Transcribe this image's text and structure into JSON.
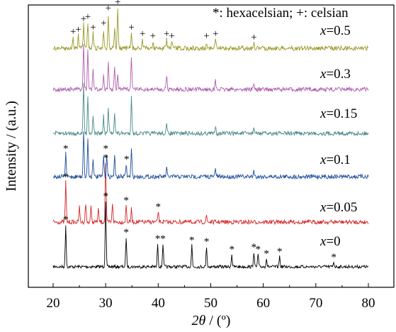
{
  "chart_data": {
    "type": "line",
    "xlabel_symbol": "2θ",
    "xlabel_unit": " / (º)",
    "ylabel": "Intensity / (a.u.)",
    "xlim": [
      20,
      80
    ],
    "xticks": [
      20,
      30,
      40,
      50,
      60,
      70,
      80
    ],
    "yticks_labeled": false,
    "grid": false,
    "legend": {
      "star_symbol": "*",
      "star_text": ": hexacelsian; ",
      "plus_symbol": "+",
      "plus_text": ": celsian",
      "placement": "top-right"
    },
    "series": [
      {
        "name": "x=0",
        "label_prefix": "x",
        "label_value": "=0",
        "color": "#000000",
        "peaks": [
          {
            "x": 22.4,
            "h": 1.0
          },
          {
            "x": 30.0,
            "h": 1.55
          },
          {
            "x": 33.9,
            "h": 0.7
          },
          {
            "x": 39.9,
            "h": 0.55
          },
          {
            "x": 40.9,
            "h": 0.55
          },
          {
            "x": 46.4,
            "h": 0.52
          },
          {
            "x": 49.2,
            "h": 0.48
          },
          {
            "x": 54.0,
            "h": 0.3
          },
          {
            "x": 58.2,
            "h": 0.35
          },
          {
            "x": 59.0,
            "h": 0.3
          },
          {
            "x": 60.6,
            "h": 0.2
          },
          {
            "x": 63.1,
            "h": 0.25
          },
          {
            "x": 73.4,
            "h": 0.12
          }
        ]
      },
      {
        "name": "x=0.05",
        "label_prefix": "x",
        "label_value": "=0.05",
        "color": "#d62728",
        "peaks": [
          {
            "x": 22.4,
            "h": 0.95
          },
          {
            "x": 25.0,
            "h": 0.35
          },
          {
            "x": 26.2,
            "h": 0.45
          },
          {
            "x": 27.2,
            "h": 0.35
          },
          {
            "x": 28.6,
            "h": 0.3
          },
          {
            "x": 30.0,
            "h": 1.4
          },
          {
            "x": 31.3,
            "h": 0.45
          },
          {
            "x": 33.9,
            "h": 0.4
          },
          {
            "x": 34.9,
            "h": 0.3
          },
          {
            "x": 40.0,
            "h": 0.25
          },
          {
            "x": 49.2,
            "h": 0.15
          }
        ]
      },
      {
        "name": "x=0.1",
        "label_prefix": "x",
        "label_value": "=0.1",
        "color": "#1f4e9c",
        "peaks": [
          {
            "x": 22.4,
            "h": 0.55
          },
          {
            "x": 25.8,
            "h": 1.1
          },
          {
            "x": 26.6,
            "h": 0.9
          },
          {
            "x": 27.6,
            "h": 0.45
          },
          {
            "x": 29.6,
            "h": 0.5
          },
          {
            "x": 30.2,
            "h": 0.55
          },
          {
            "x": 31.7,
            "h": 0.5
          },
          {
            "x": 33.9,
            "h": 0.3
          },
          {
            "x": 34.9,
            "h": 0.65
          },
          {
            "x": 41.6,
            "h": 0.2
          },
          {
            "x": 50.9,
            "h": 0.2
          },
          {
            "x": 58.2,
            "h": 0.15
          }
        ]
      },
      {
        "name": "x=0.15",
        "label_prefix": "x",
        "label_value": "=0.15",
        "color": "#4a8a8a",
        "peaks": [
          {
            "x": 25.8,
            "h": 1.2
          },
          {
            "x": 26.6,
            "h": 0.9
          },
          {
            "x": 27.6,
            "h": 0.45
          },
          {
            "x": 29.6,
            "h": 0.4
          },
          {
            "x": 30.5,
            "h": 0.6
          },
          {
            "x": 31.7,
            "h": 0.5
          },
          {
            "x": 34.9,
            "h": 0.9
          },
          {
            "x": 41.6,
            "h": 0.2
          },
          {
            "x": 50.9,
            "h": 0.2
          },
          {
            "x": 58.2,
            "h": 0.15
          }
        ]
      },
      {
        "name": "x=0.3",
        "label_prefix": "x",
        "label_value": "=0.3",
        "color": "#b05fb0",
        "peaks": [
          {
            "x": 25.8,
            "h": 1.1
          },
          {
            "x": 26.6,
            "h": 0.95
          },
          {
            "x": 27.6,
            "h": 0.5
          },
          {
            "x": 29.6,
            "h": 0.35
          },
          {
            "x": 30.5,
            "h": 0.6
          },
          {
            "x": 31.7,
            "h": 0.5
          },
          {
            "x": 32.3,
            "h": 0.35
          },
          {
            "x": 34.9,
            "h": 0.8
          },
          {
            "x": 41.6,
            "h": 0.35
          },
          {
            "x": 50.9,
            "h": 0.2
          },
          {
            "x": 58.2,
            "h": 0.15
          }
        ]
      },
      {
        "name": "x=0.5",
        "label_prefix": "x",
        "label_value": "=0.5",
        "color": "#9a9a2a",
        "peaks": [
          {
            "x": 23.8,
            "h": 0.25
          },
          {
            "x": 24.8,
            "h": 0.3
          },
          {
            "x": 25.8,
            "h": 0.55
          },
          {
            "x": 26.6,
            "h": 0.6
          },
          {
            "x": 27.6,
            "h": 0.35
          },
          {
            "x": 29.6,
            "h": 0.45
          },
          {
            "x": 30.5,
            "h": 0.8
          },
          {
            "x": 31.7,
            "h": 0.5
          },
          {
            "x": 32.3,
            "h": 0.95
          },
          {
            "x": 34.9,
            "h": 0.35
          },
          {
            "x": 37.0,
            "h": 0.2
          },
          {
            "x": 39.0,
            "h": 0.15
          },
          {
            "x": 41.6,
            "h": 0.2
          },
          {
            "x": 42.6,
            "h": 0.15
          },
          {
            "x": 49.2,
            "h": 0.15
          },
          {
            "x": 50.9,
            "h": 0.2
          },
          {
            "x": 58.2,
            "h": 0.12
          }
        ]
      }
    ],
    "annotations": [
      {
        "series": "x=0",
        "symbol": "*",
        "positions": [
          22.4,
          30.0,
          33.9,
          39.9,
          40.9,
          46.4,
          49.2,
          54.0,
          58.2,
          59.0,
          60.6,
          63.1,
          73.4
        ]
      },
      {
        "series": "x=0.05",
        "symbol": "*",
        "positions": [
          22.4,
          30.0,
          33.9,
          40.0
        ]
      },
      {
        "series": "x=0.1",
        "symbol": "*",
        "positions": [
          22.4,
          30.0,
          34.0
        ]
      },
      {
        "series": "x=0.5",
        "symbol": "+",
        "positions": [
          23.8,
          24.8,
          25.8,
          26.6,
          27.6,
          29.6,
          30.5,
          32.3,
          34.9,
          37.0,
          39.0,
          41.6,
          42.6,
          49.2,
          50.9,
          58.2
        ]
      }
    ]
  }
}
